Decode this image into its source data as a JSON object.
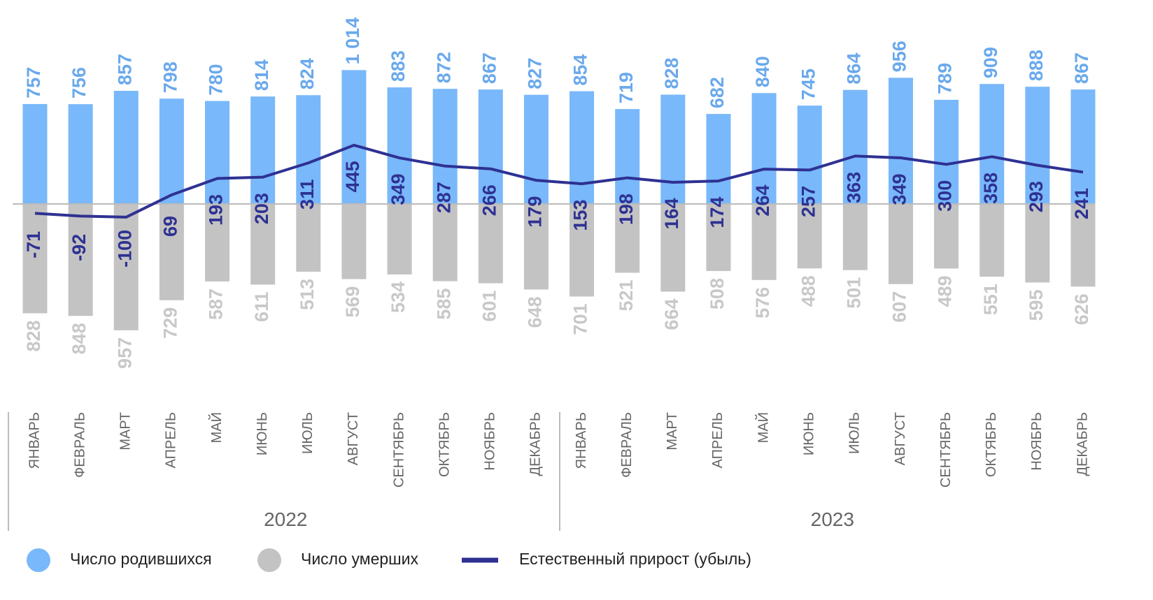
{
  "chart_data": {
    "type": "bar_line",
    "categories": [
      "ЯНВАРЬ",
      "ФЕВРАЛЬ",
      "МАРТ",
      "АПРЕЛЬ",
      "МАЙ",
      "ИЮНЬ",
      "ИЮЛЬ",
      "АВГУСТ",
      "СЕНТЯБРЬ",
      "ОКТЯБРЬ",
      "НОЯБРЬ",
      "ДЕКАБРЬ",
      "ЯНВАРЬ",
      "ФЕВРАЛЬ",
      "МАРТ",
      "АПРЕЛЬ",
      "МАЙ",
      "ИЮНЬ",
      "ИЮЛЬ",
      "АВГУСТ",
      "СЕНТЯБРЬ",
      "ОКТЯБРЬ",
      "НОЯБРЬ",
      "ДЕКАБРЬ"
    ],
    "years": [
      "2022",
      "2023"
    ],
    "series": [
      {
        "name": "Число родившихся",
        "color": "#79b8fa",
        "label_color": "#6aa9ec",
        "kind": "bar_up",
        "values": [
          757,
          756,
          857,
          798,
          780,
          814,
          824,
          1014,
          883,
          872,
          867,
          827,
          854,
          719,
          828,
          682,
          840,
          745,
          864,
          956,
          789,
          909,
          888,
          867
        ],
        "value_labels": [
          "757",
          "756",
          "857",
          "798",
          "780",
          "814",
          "824",
          "1 014",
          "883",
          "872",
          "867",
          "827",
          "854",
          "719",
          "828",
          "682",
          "840",
          "745",
          "864",
          "956",
          "789",
          "909",
          "888",
          "867"
        ]
      },
      {
        "name": "Число умерших",
        "color": "#c3c3c3",
        "label_color": "#c8c8c8",
        "kind": "bar_down",
        "values": [
          828,
          848,
          957,
          729,
          587,
          611,
          513,
          569,
          534,
          585,
          601,
          648,
          701,
          521,
          664,
          508,
          576,
          488,
          501,
          607,
          489,
          551,
          595,
          626
        ]
      },
      {
        "name": "Естественный прирост (убыль)",
        "color": "#2e3192",
        "label_color": "#2e3192",
        "kind": "line",
        "values": [
          -71,
          -92,
          -100,
          69,
          193,
          203,
          311,
          445,
          349,
          287,
          266,
          179,
          153,
          198,
          164,
          174,
          264,
          257,
          363,
          349,
          300,
          358,
          293,
          241
        ]
      }
    ]
  }
}
